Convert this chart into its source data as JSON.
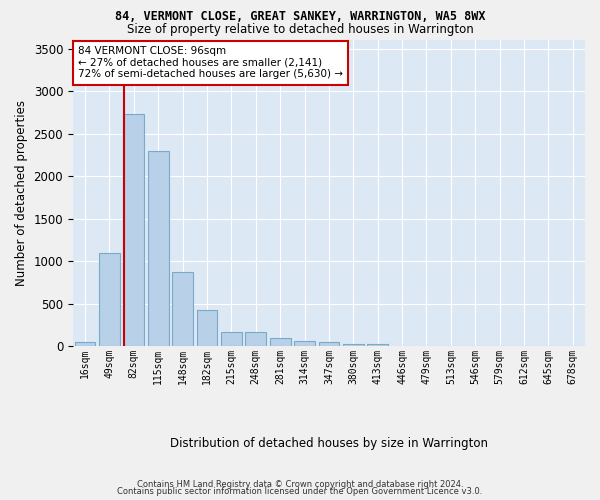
{
  "title": "84, VERMONT CLOSE, GREAT SANKEY, WARRINGTON, WA5 8WX",
  "subtitle": "Size of property relative to detached houses in Warrington",
  "xlabel": "Distribution of detached houses by size in Warrington",
  "ylabel": "Number of detached properties",
  "bar_labels": [
    "16sqm",
    "49sqm",
    "82sqm",
    "115sqm",
    "148sqm",
    "182sqm",
    "215sqm",
    "248sqm",
    "281sqm",
    "314sqm",
    "347sqm",
    "380sqm",
    "413sqm",
    "446sqm",
    "479sqm",
    "513sqm",
    "546sqm",
    "579sqm",
    "612sqm",
    "645sqm",
    "678sqm"
  ],
  "bar_values": [
    55,
    1100,
    2730,
    2290,
    875,
    425,
    170,
    165,
    95,
    60,
    50,
    30,
    30,
    5,
    5,
    5,
    0,
    0,
    0,
    0,
    0
  ],
  "bar_color": "#b8d0e8",
  "bar_edge_color": "#7aaac8",
  "background_color": "#dde8f5",
  "grid_color": "#ffffff",
  "annotation_text": "84 VERMONT CLOSE: 96sqm\n← 27% of detached houses are smaller (2,141)\n72% of semi-detached houses are larger (5,630) →",
  "vline_color": "#cc0000",
  "annotation_box_color": "#ffffff",
  "annotation_box_edge_color": "#cc0000",
  "ylim": [
    0,
    3600
  ],
  "yticks": [
    0,
    500,
    1000,
    1500,
    2000,
    2500,
    3000,
    3500
  ],
  "footer1": "Contains HM Land Registry data © Crown copyright and database right 2024.",
  "footer2": "Contains public sector information licensed under the Open Government Licence v3.0."
}
